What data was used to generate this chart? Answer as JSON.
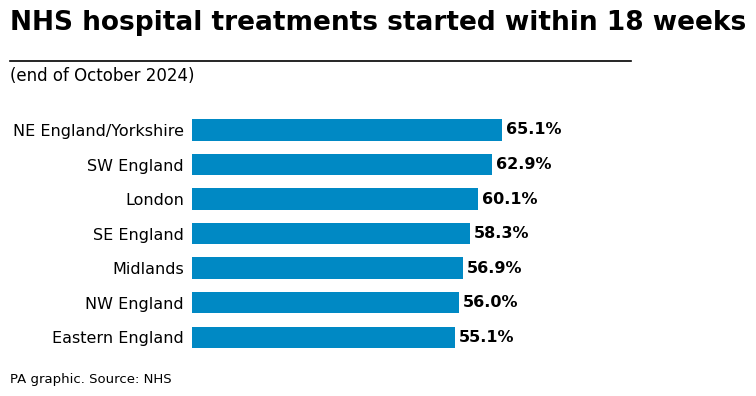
{
  "title": "NHS hospital treatments started within 18 weeks",
  "subtitle": "(end of October 2024)",
  "caption": "PA graphic. Source: NHS",
  "categories": [
    "NE England/Yorkshire",
    "SW England",
    "London",
    "SE England",
    "Midlands",
    "NW England",
    "Eastern England"
  ],
  "values": [
    65.1,
    62.9,
    60.1,
    58.3,
    56.9,
    56.0,
    55.1
  ],
  "bar_color": "#0089c4",
  "background_color": "#ffffff",
  "title_fontsize": 19,
  "subtitle_fontsize": 12,
  "label_fontsize": 11.5,
  "value_fontsize": 11.5,
  "caption_fontsize": 9.5,
  "xlim": [
    0,
    78
  ],
  "bar_height": 0.62
}
